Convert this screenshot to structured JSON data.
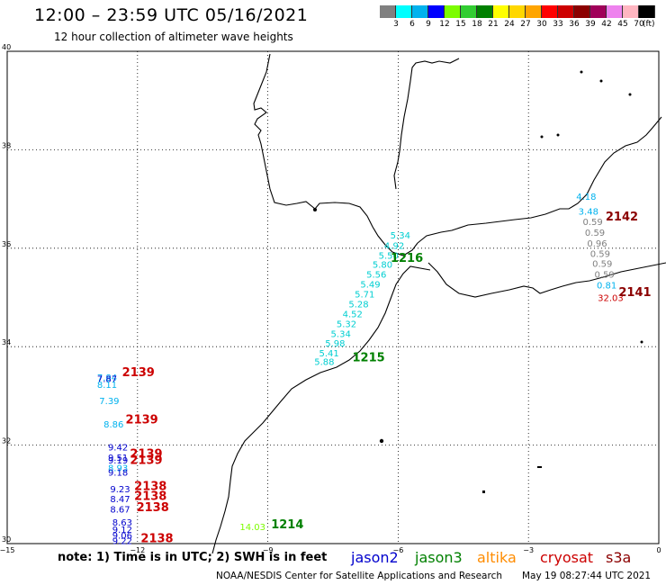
{
  "header": {
    "title": "12:00 – 23:59 UTC 05/16/2021",
    "subtitle": "12 hour collection of altimeter wave heights"
  },
  "colorbar": {
    "colors": [
      "#808080",
      "#00ffff",
      "#00b2ee",
      "#0000ff",
      "#7cfc00",
      "#32cd32",
      "#008000",
      "#ffff00",
      "#ffd700",
      "#ffa500",
      "#ff0000",
      "#cd0000",
      "#8b0000",
      "#a0005a",
      "#ee82ee",
      "#ffb6c1",
      "#000000"
    ],
    "labels": [
      "3",
      "6",
      "9",
      "12",
      "15",
      "18",
      "21",
      "24",
      "27",
      "30",
      "33",
      "36",
      "39",
      "42",
      "45",
      "70"
    ],
    "unit": "(ft)"
  },
  "map": {
    "lon_range": [
      -15,
      0
    ],
    "lat_range": [
      30,
      40
    ],
    "x_ticks": [
      "−15",
      "−12",
      "−9",
      "−6",
      "−3",
      "0"
    ],
    "y_ticks": [
      "40",
      "38",
      "36",
      "34",
      "32",
      "30"
    ],
    "grid": "dotted"
  },
  "satellite_colors": {
    "jason2": "#0000cd",
    "jason3": "#008000",
    "altika": "#ff8c00",
    "cryosat": "#cc0000",
    "s3a": "#8b0000"
  },
  "observations": [
    {
      "v": "4.18",
      "lat": 36.98,
      "lon": -1.67,
      "c": "#00b2ee"
    },
    {
      "v": "3.48",
      "lat": 36.68,
      "lon": -1.62,
      "c": "#00b2ee"
    },
    {
      "v": "0.59",
      "lat": 36.47,
      "lon": -1.52,
      "c": "#808080"
    },
    {
      "v": "0.59",
      "lat": 36.25,
      "lon": -1.47,
      "c": "#808080"
    },
    {
      "v": "0.96",
      "lat": 36.03,
      "lon": -1.42,
      "c": "#808080"
    },
    {
      "v": "0.59",
      "lat": 35.82,
      "lon": -1.35,
      "c": "#808080"
    },
    {
      "v": "0.59",
      "lat": 35.62,
      "lon": -1.3,
      "c": "#808080"
    },
    {
      "v": "0.59",
      "lat": 35.4,
      "lon": -1.25,
      "c": "#808080"
    },
    {
      "v": "0.81",
      "lat": 35.18,
      "lon": -1.2,
      "c": "#00b2ee"
    },
    {
      "v": "32.03",
      "lat": 34.93,
      "lon": -1.11,
      "c": "#cc0000"
    },
    {
      "v": "5.34",
      "lat": 36.2,
      "lon": -5.95,
      "c": "#00ced1"
    },
    {
      "v": "4.92",
      "lat": 35.99,
      "lon": -6.09,
      "c": "#00ced1"
    },
    {
      "v": "5.50",
      "lat": 35.79,
      "lon": -6.22,
      "c": "#00ced1"
    },
    {
      "v": "5.80",
      "lat": 35.6,
      "lon": -6.36,
      "c": "#00ced1"
    },
    {
      "v": "5.56",
      "lat": 35.4,
      "lon": -6.5,
      "c": "#00ced1"
    },
    {
      "v": "5.49",
      "lat": 35.2,
      "lon": -6.64,
      "c": "#00ced1"
    },
    {
      "v": "5.71",
      "lat": 35.0,
      "lon": -6.77,
      "c": "#00ced1"
    },
    {
      "v": "5.28",
      "lat": 34.8,
      "lon": -6.91,
      "c": "#00ced1"
    },
    {
      "v": "4.52",
      "lat": 34.6,
      "lon": -7.05,
      "c": "#00ced1"
    },
    {
      "v": "5.32",
      "lat": 34.4,
      "lon": -7.19,
      "c": "#00ced1"
    },
    {
      "v": "5.34",
      "lat": 34.2,
      "lon": -7.32,
      "c": "#00ced1"
    },
    {
      "v": "5.98",
      "lat": 34.0,
      "lon": -7.45,
      "c": "#00ced1"
    },
    {
      "v": "5.41",
      "lat": 33.8,
      "lon": -7.59,
      "c": "#00ced1"
    },
    {
      "v": "5.88",
      "lat": 33.63,
      "lon": -7.7,
      "c": "#00ced1"
    },
    {
      "v": "7.84",
      "lat": 33.31,
      "lon": -12.7,
      "c": "#00b2ee"
    },
    {
      "v": "7.87",
      "lat": 33.28,
      "lon": -12.7,
      "c": "#0000cd"
    },
    {
      "v": "8.11",
      "lat": 33.16,
      "lon": -12.7,
      "c": "#00b2ee"
    },
    {
      "v": "7.39",
      "lat": 32.83,
      "lon": -12.65,
      "c": "#00b2ee"
    },
    {
      "v": "8.86",
      "lat": 32.36,
      "lon": -12.55,
      "c": "#00b2ee"
    },
    {
      "v": "9.42",
      "lat": 31.89,
      "lon": -12.45,
      "c": "#0000cd"
    },
    {
      "v": "9.51",
      "lat": 31.68,
      "lon": -12.45,
      "c": "#0000cd"
    },
    {
      "v": "9.19",
      "lat": 31.63,
      "lon": -12.45,
      "c": "#0000cd"
    },
    {
      "v": "8.93",
      "lat": 31.47,
      "lon": -12.45,
      "c": "#00b2ee"
    },
    {
      "v": "9.18",
      "lat": 31.38,
      "lon": -12.45,
      "c": "#0000cd"
    },
    {
      "v": "9.23",
      "lat": 31.04,
      "lon": -12.4,
      "c": "#0000cd"
    },
    {
      "v": "8.47",
      "lat": 30.84,
      "lon": -12.4,
      "c": "#0000cd"
    },
    {
      "v": "8.67",
      "lat": 30.63,
      "lon": -12.4,
      "c": "#0000cd"
    },
    {
      "v": "8.63",
      "lat": 30.37,
      "lon": -12.35,
      "c": "#0000cd"
    },
    {
      "v": "9.12",
      "lat": 30.22,
      "lon": -12.35,
      "c": "#0000cd"
    },
    {
      "v": "9.06",
      "lat": 30.1,
      "lon": -12.35,
      "c": "#0000cd"
    },
    {
      "v": "9.22",
      "lat": 29.99,
      "lon": -12.35,
      "c": "#0000cd"
    },
    {
      "v": "14.03",
      "lat": 30.27,
      "lon": -9.35,
      "c": "#7cfc00"
    }
  ],
  "time_labels": [
    {
      "t": "2142",
      "lat": 36.56,
      "lon": -0.85,
      "c": "#8b0000"
    },
    {
      "t": "2141",
      "lat": 35.03,
      "lon": -0.55,
      "c": "#8b0000"
    },
    {
      "t": "1216",
      "lat": 35.72,
      "lon": -5.8,
      "c": "#008000"
    },
    {
      "t": "1215",
      "lat": 33.7,
      "lon": -6.68,
      "c": "#008000"
    },
    {
      "t": "2139",
      "lat": 33.4,
      "lon": -11.98,
      "c": "#cc0000"
    },
    {
      "t": "2139",
      "lat": 32.44,
      "lon": -11.9,
      "c": "#cc0000"
    },
    {
      "t": "2139",
      "lat": 31.75,
      "lon": -11.8,
      "c": "#cc0000"
    },
    {
      "t": "2139",
      "lat": 31.62,
      "lon": -11.8,
      "c": "#cc0000"
    },
    {
      "t": "2138",
      "lat": 31.09,
      "lon": -11.7,
      "c": "#cc0000"
    },
    {
      "t": "2138",
      "lat": 30.89,
      "lon": -11.7,
      "c": "#cc0000"
    },
    {
      "t": "2138",
      "lat": 30.66,
      "lon": -11.65,
      "c": "#cc0000"
    },
    {
      "t": "2138",
      "lat": 30.03,
      "lon": -11.55,
      "c": "#cc0000"
    },
    {
      "t": "1214",
      "lat": 30.31,
      "lon": -8.55,
      "c": "#008000"
    }
  ],
  "footer": {
    "note": "note: 1) Time is in UTC; 2) SWH is in feet",
    "legend": [
      {
        "name": "jason2",
        "color": "#0000cd"
      },
      {
        "name": "jason3",
        "color": "#008000"
      },
      {
        "name": "altika",
        "color": "#ff8c00"
      },
      {
        "name": "cryosat",
        "color": "#cc0000"
      },
      {
        "name": "s3a",
        "color": "#8b0000"
      }
    ],
    "credit": "NOAA/NESDIS Center for Satellite Applications and Research",
    "date": "May 19 08:27:44 UTC 2021"
  }
}
